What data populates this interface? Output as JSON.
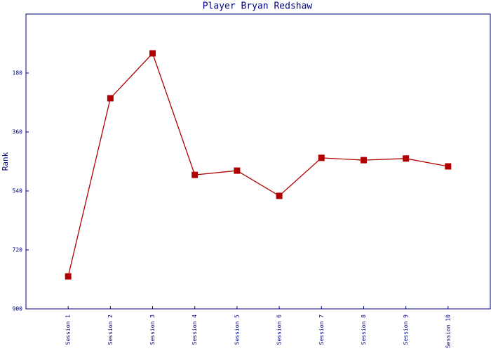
{
  "chart_data": {
    "type": "line",
    "title": "Player Bryan Redshaw",
    "y_label": "Rank",
    "categories": [
      "Session 1",
      "Session 2",
      "Session 3",
      "Session 4",
      "Session 5",
      "Session 6",
      "Session 7",
      "Session 8",
      "Session 9",
      "Session 10"
    ],
    "series": [
      {
        "name": "Rank",
        "color": "#b00000",
        "values": [
          801,
          257,
          120,
          491,
          478,
          555,
          439,
          446,
          441,
          465
        ]
      }
    ],
    "ylim": [
      0,
      900
    ],
    "yticks": [
      180,
      360,
      540,
      720,
      900
    ],
    "y_inverted": true,
    "grid": false
  }
}
